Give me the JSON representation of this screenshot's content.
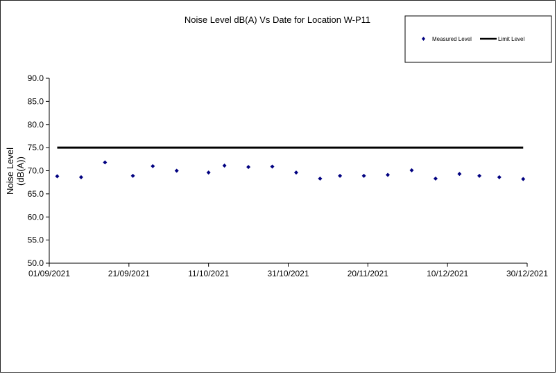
{
  "chart_data": {
    "type": "scatter",
    "title": "Noise Level dB(A) Vs Date for Location W-P11",
    "ylabel_lines": [
      "Noise Level",
      "(dB(A))"
    ],
    "xlabel": "",
    "x_axis": {
      "type": "date",
      "min": "2021-09-01",
      "max": "2021-12-30",
      "tick_labels": [
        "01/09/2021",
        "21/09/2021",
        "11/10/2021",
        "31/10/2021",
        "20/11/2021",
        "10/12/2021",
        "30/12/2021"
      ],
      "tick_dates": [
        "2021-09-01",
        "2021-09-21",
        "2021-10-11",
        "2021-10-31",
        "2021-11-20",
        "2021-12-10",
        "2021-12-30"
      ]
    },
    "ylim": [
      50,
      90
    ],
    "y_ticks": [
      "50.0",
      "55.0",
      "60.0",
      "65.0",
      "70.0",
      "75.0",
      "80.0",
      "85.0",
      "90.0"
    ],
    "grid": false,
    "legend_position": "top-right",
    "series": [
      {
        "name": "Measured Level",
        "kind": "points",
        "color": "#000080",
        "marker": "diamond",
        "points": [
          {
            "x": "2021-09-03",
            "y": 68.8
          },
          {
            "x": "2021-09-09",
            "y": 68.6
          },
          {
            "x": "2021-09-15",
            "y": 71.8
          },
          {
            "x": "2021-09-22",
            "y": 68.9
          },
          {
            "x": "2021-09-27",
            "y": 71.0
          },
          {
            "x": "2021-10-03",
            "y": 70.0
          },
          {
            "x": "2021-10-11",
            "y": 69.6
          },
          {
            "x": "2021-10-15",
            "y": 71.1
          },
          {
            "x": "2021-10-21",
            "y": 70.8
          },
          {
            "x": "2021-10-27",
            "y": 70.9
          },
          {
            "x": "2021-11-02",
            "y": 69.6
          },
          {
            "x": "2021-11-08",
            "y": 68.3
          },
          {
            "x": "2021-11-13",
            "y": 68.9
          },
          {
            "x": "2021-11-19",
            "y": 68.9
          },
          {
            "x": "2021-11-25",
            "y": 69.1
          },
          {
            "x": "2021-12-01",
            "y": 70.1
          },
          {
            "x": "2021-12-07",
            "y": 68.3
          },
          {
            "x": "2021-12-13",
            "y": 69.3
          },
          {
            "x": "2021-12-18",
            "y": 68.9
          },
          {
            "x": "2021-12-23",
            "y": 68.6
          },
          {
            "x": "2021-12-29",
            "y": 68.2
          }
        ]
      },
      {
        "name": "Limit Level",
        "kind": "line",
        "color": "#000000",
        "points": [
          {
            "x": "2021-09-03",
            "y": 75.0
          },
          {
            "x": "2021-12-29",
            "y": 75.0
          }
        ]
      }
    ]
  }
}
